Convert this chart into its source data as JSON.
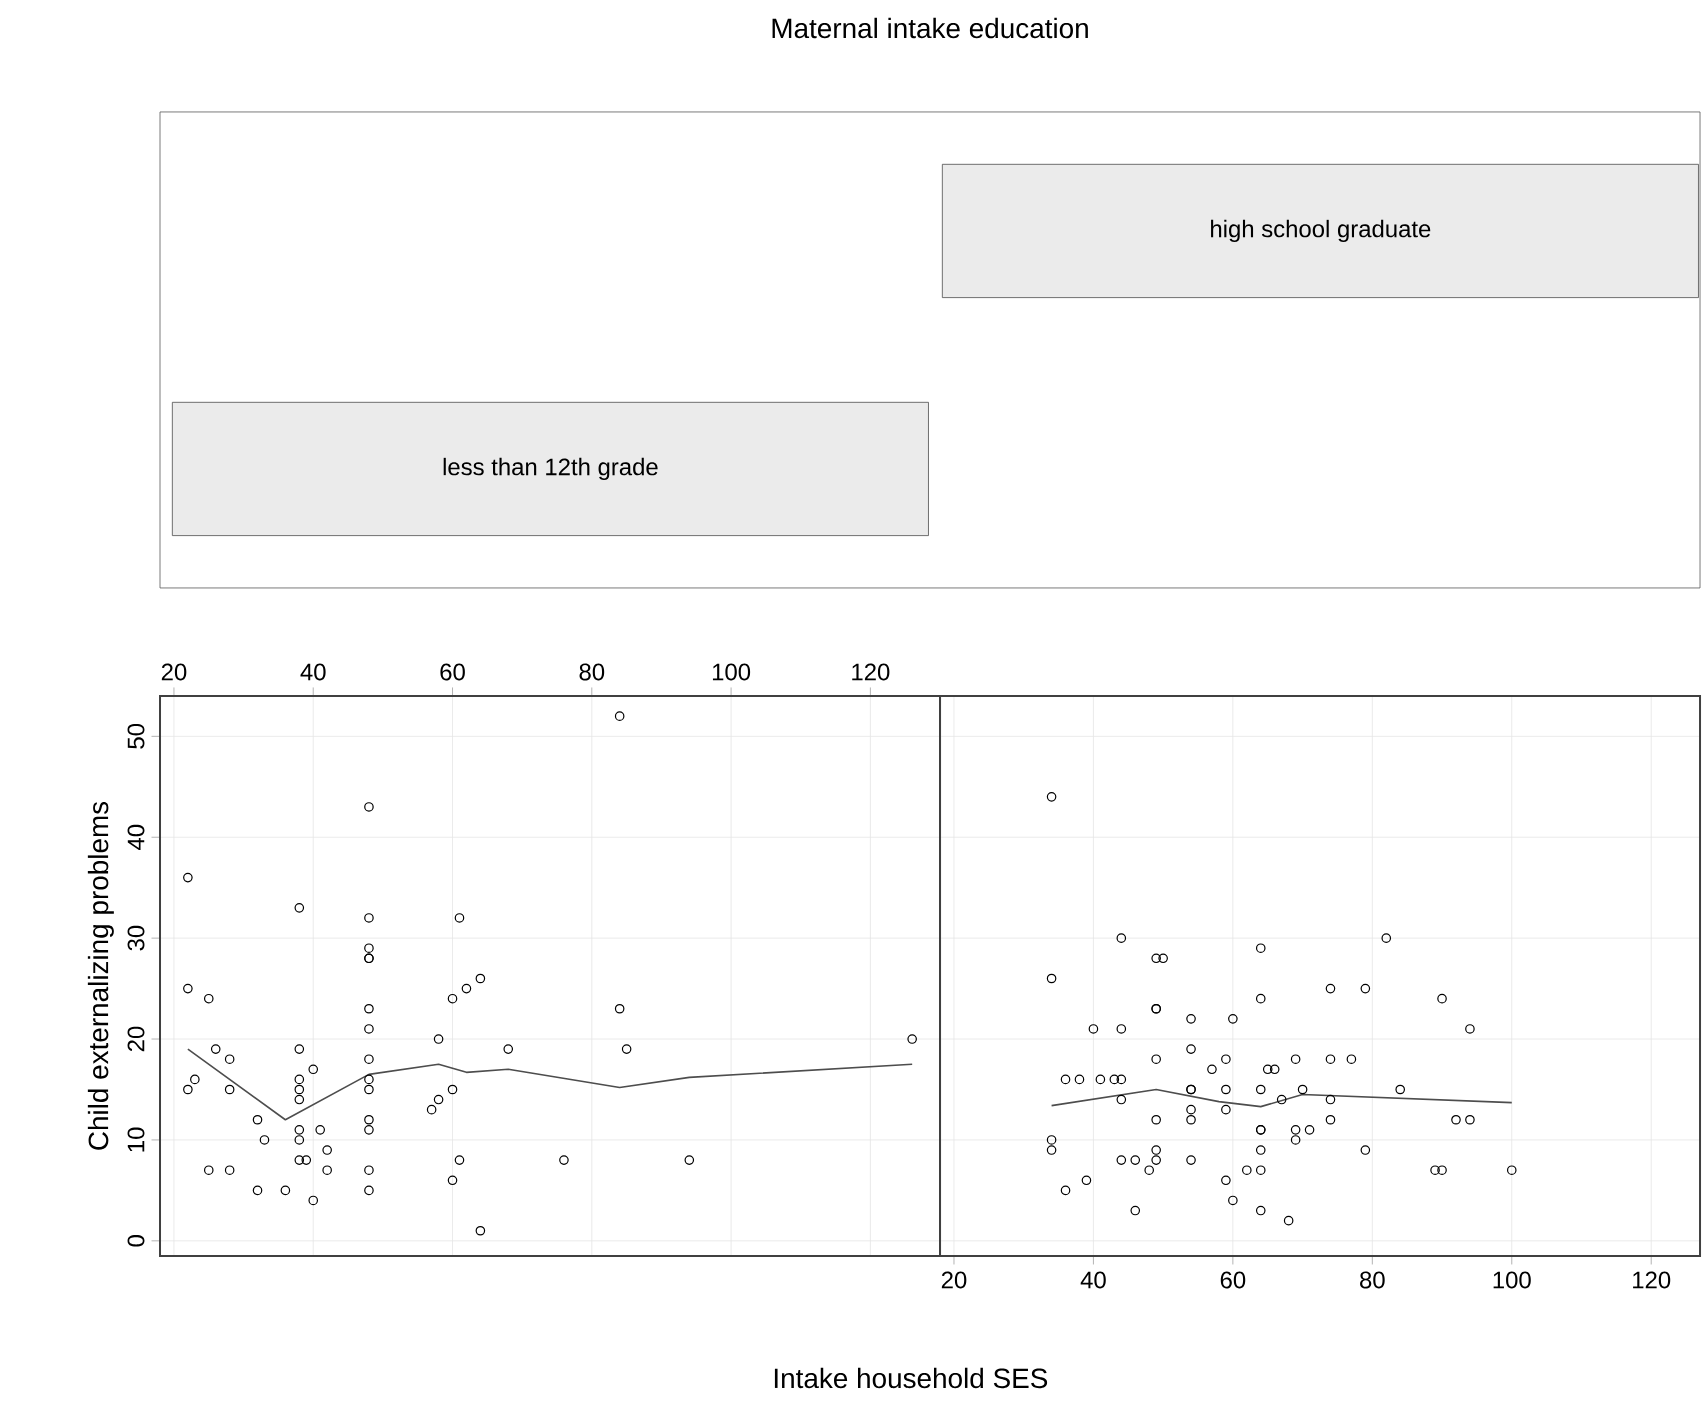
{
  "chart_data": [
    {
      "type": "other",
      "title": "Maternal intake education",
      "categories": [
        "less than 12th grade",
        "high school graduate"
      ],
      "color": "#ebebeb"
    },
    {
      "type": "scatter",
      "xlabel": "Intake household SES",
      "ylabel": "Child externalizing problems",
      "xlim": [
        18,
        130
      ],
      "ylim": [
        -1.5,
        54
      ],
      "xticks": [
        20,
        40,
        60,
        80,
        100,
        120
      ],
      "yticks": [
        0,
        10,
        20,
        30,
        40,
        50
      ],
      "grid": true,
      "marker": "circle",
      "series": [
        {
          "color": "#000000",
          "x": [
            22,
            22,
            22,
            23,
            25,
            25,
            26,
            28,
            28,
            28,
            32,
            32,
            33,
            36,
            38,
            38,
            38,
            38,
            38,
            38,
            38,
            38,
            39,
            40,
            40,
            41,
            42,
            42,
            48,
            48,
            48,
            48,
            48,
            48,
            48,
            48,
            48,
            48,
            48,
            48,
            48,
            48,
            57,
            58,
            58,
            60,
            60,
            60,
            61,
            61,
            62,
            64,
            64,
            68,
            76,
            84,
            84,
            85,
            94,
            126
          ],
          "values": [
            36,
            25,
            15,
            16,
            7,
            24,
            19,
            18,
            15,
            7,
            12,
            5,
            10,
            5,
            33,
            19,
            16,
            15,
            14,
            11,
            10,
            8,
            8,
            17,
            4,
            11,
            9,
            7,
            43,
            32,
            29,
            28,
            28,
            23,
            21,
            18,
            16,
            15,
            12,
            11,
            7,
            5,
            13,
            14,
            20,
            24,
            15,
            6,
            32,
            8,
            25,
            26,
            1,
            19,
            8,
            52,
            23,
            19,
            8,
            20
          ]
        },
        {
          "type": "line",
          "marker": "none",
          "color": "#4d4d4d",
          "x": [
            22,
            36,
            48,
            58,
            62,
            68,
            84,
            94,
            126
          ],
          "values": [
            19,
            12,
            16.5,
            17.5,
            16.7,
            17,
            15.2,
            16.2,
            17.5
          ]
        }
      ]
    },
    {
      "type": "scatter",
      "tick_labels": "x",
      "xlim": [
        18,
        127
      ],
      "ylim": [
        -1.5,
        54
      ],
      "xticks": [
        20,
        40,
        60,
        80,
        100,
        120
      ],
      "yticks": [
        0,
        10,
        20,
        30,
        40,
        50
      ],
      "grid": true,
      "marker": "circle",
      "series": [
        {
          "color": "#000000",
          "x": [
            34,
            34,
            34,
            34,
            36,
            36,
            38,
            39,
            40,
            41,
            43,
            44,
            44,
            44,
            44,
            44,
            46,
            46,
            48,
            49,
            49,
            49,
            49,
            50,
            49,
            49,
            49,
            54,
            54,
            54,
            54,
            54,
            54,
            54,
            57,
            59,
            59,
            59,
            59,
            60,
            60,
            62,
            64,
            64,
            64,
            64,
            64,
            64,
            64,
            64,
            65,
            66,
            67,
            68,
            69,
            69,
            69,
            70,
            71,
            74,
            74,
            74,
            74,
            77,
            79,
            79,
            82,
            84,
            89,
            90,
            90,
            92,
            94,
            94,
            100
          ],
          "values": [
            44,
            26,
            10,
            9,
            5,
            16,
            16,
            6,
            21,
            16,
            16,
            16,
            30,
            21,
            14,
            8,
            8,
            3,
            7,
            18,
            23,
            23,
            28,
            28,
            12,
            9,
            8,
            22,
            19,
            15,
            15,
            13,
            12,
            8,
            17,
            18,
            15,
            13,
            6,
            22,
            4,
            7,
            29,
            24,
            15,
            11,
            11,
            9,
            7,
            3,
            17,
            17,
            14,
            2,
            18,
            11,
            10,
            15,
            11,
            25,
            18,
            14,
            12,
            18,
            25,
            9,
            30,
            15,
            7,
            7,
            24,
            12,
            12,
            21,
            7
          ]
        },
        {
          "type": "line",
          "marker": "none",
          "color": "#4d4d4d",
          "x": [
            34,
            49,
            58,
            64,
            70,
            100
          ],
          "values": [
            13.4,
            15,
            13.8,
            13.3,
            14.5,
            13.7
          ]
        }
      ]
    }
  ]
}
